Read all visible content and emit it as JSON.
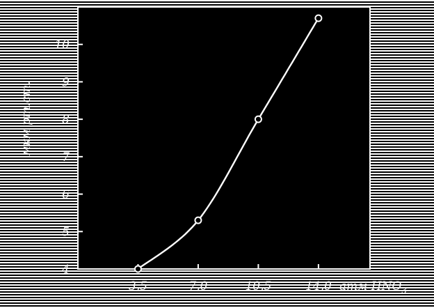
{
  "chart_data": {
    "type": "line",
    "x": [
      3.5,
      7.0,
      10.5,
      14.0
    ],
    "y": [
      4.0,
      5.3,
      8.0,
      10.7
    ],
    "xlim": [
      0,
      17
    ],
    "ylim": [
      4,
      11
    ],
    "x_ticks": [
      {
        "value": 3.5,
        "label": "3,5"
      },
      {
        "value": 7.0,
        "label": "7,0"
      },
      {
        "value": 10.5,
        "label": "10,5"
      },
      {
        "value": 14.0,
        "label": "14,0"
      }
    ],
    "y_ticks": [
      {
        "value": 4,
        "label": "4"
      },
      {
        "value": 5,
        "label": "5"
      },
      {
        "value": 6,
        "label": "6"
      },
      {
        "value": 7,
        "label": "7"
      },
      {
        "value": 8,
        "label": "8"
      },
      {
        "value": 9,
        "label": "9"
      },
      {
        "value": 10,
        "label": "10"
      }
    ],
    "xlabel": "атм HNO",
    "xlabel_subscript": "3",
    "ylabel": "мкм рт.ст.",
    "grid": false,
    "colors": {
      "background": "#000000",
      "foreground": "#ffffff"
    }
  }
}
